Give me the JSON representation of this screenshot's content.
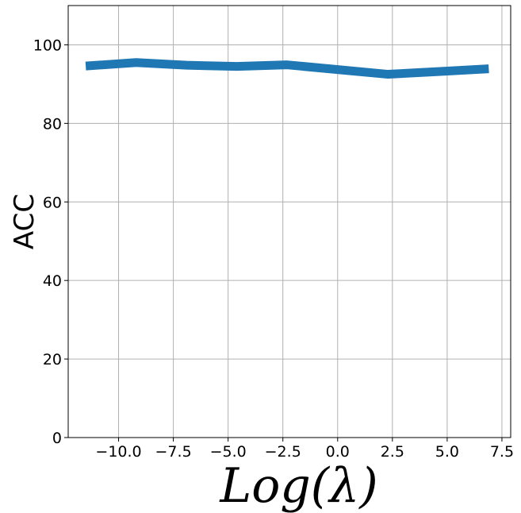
{
  "chart_data": {
    "type": "line",
    "title": "",
    "xlabel": "Log(λ)",
    "ylabel": "ACC",
    "xlim": [
      -12.3,
      7.9
    ],
    "ylim": [
      0,
      110
    ],
    "xticks": [
      -10.0,
      -7.5,
      -5.0,
      -2.5,
      0.0,
      2.5,
      5.0,
      7.5
    ],
    "xtick_labels": [
      "−10.0",
      "−7.5",
      "−5.0",
      "−2.5",
      "0.0",
      "2.5",
      "5.0",
      "7.5"
    ],
    "yticks": [
      0,
      20,
      40,
      60,
      80,
      100
    ],
    "ytick_labels": [
      "0",
      "20",
      "40",
      "60",
      "80",
      "100"
    ],
    "grid": true,
    "series": [
      {
        "color": "#1f77b4",
        "x": [
          -11.5,
          -9.2,
          -6.9,
          -4.6,
          -2.3,
          0.0,
          2.3,
          4.6,
          6.9
        ],
        "y": [
          94.6,
          95.5,
          94.8,
          94.5,
          94.9,
          93.7,
          92.5,
          93.2,
          93.9
        ]
      }
    ]
  }
}
